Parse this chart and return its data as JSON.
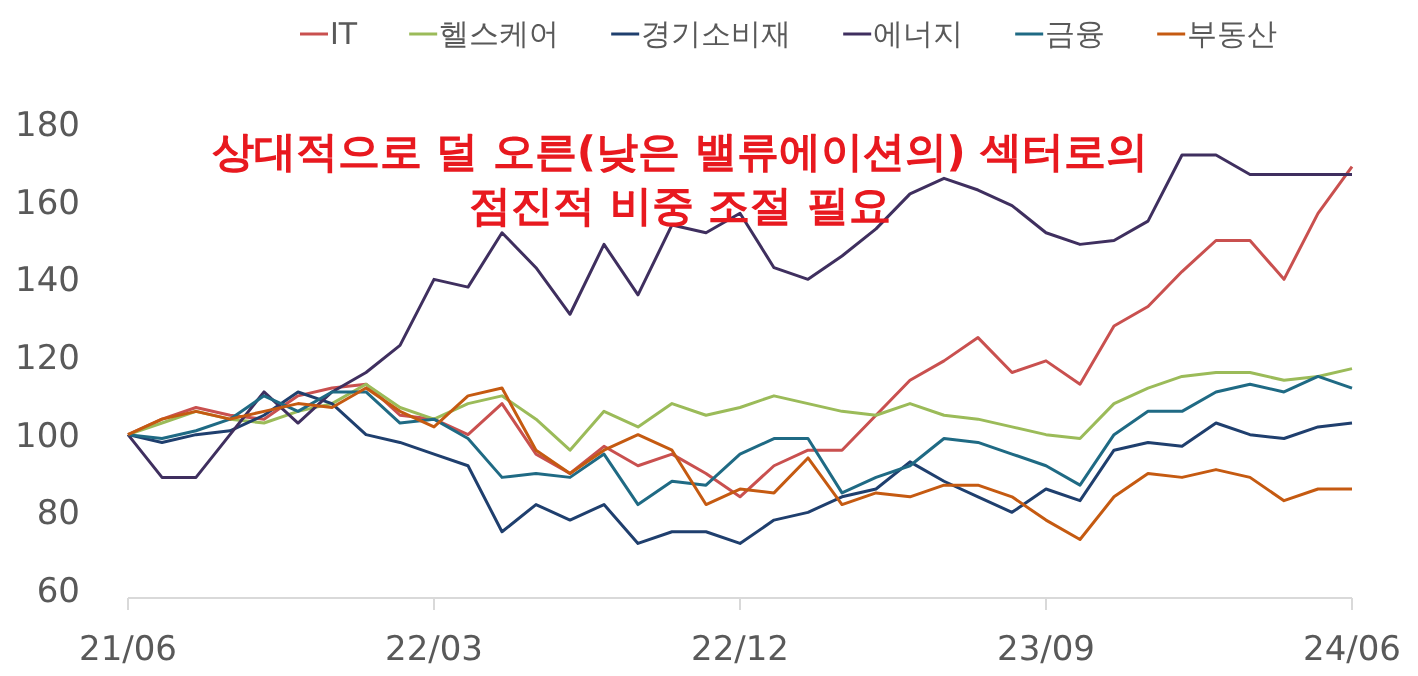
{
  "chart_data": {
    "type": "line",
    "annotations": [
      "상대적으로 덜 오른(낮은 밸류에이션의) 섹터로의",
      "점진적 비중 조절 필요"
    ],
    "categories": [
      "21/06",
      null,
      null,
      null,
      null,
      null,
      null,
      null,
      null,
      "22/03",
      null,
      null,
      null,
      null,
      null,
      null,
      null,
      null,
      "22/12",
      null,
      null,
      null,
      null,
      null,
      null,
      null,
      null,
      "23/09",
      null,
      null,
      null,
      null,
      null,
      null,
      null,
      null,
      "24/06"
    ],
    "series": [
      {
        "name": "IT",
        "color": "#c9504f",
        "values": [
          100,
          104,
          107,
          105,
          104,
          110,
          112,
          113,
          105,
          104,
          100,
          108,
          95,
          90,
          97,
          92,
          95,
          90,
          84,
          92,
          96,
          96,
          105,
          114,
          119,
          125,
          116,
          119,
          113,
          128,
          133,
          142,
          150,
          150,
          140,
          157,
          169
        ]
      },
      {
        "name": "헬스케어",
        "color": "#9bbb59",
        "values": [
          100,
          103,
          106,
          104,
          103,
          106,
          108,
          113,
          107,
          104,
          108,
          110,
          104,
          96,
          106,
          102,
          108,
          105,
          107,
          110,
          108,
          106,
          105,
          108,
          105,
          104,
          102,
          100,
          99,
          108,
          112,
          115,
          116,
          116,
          114,
          115,
          117
        ]
      },
      {
        "name": "경기소비재",
        "color": "#1f3f6e",
        "values": [
          100,
          98,
          100,
          101,
          105,
          111,
          108,
          100,
          98,
          95,
          92,
          75,
          82,
          78,
          82,
          72,
          75,
          75,
          72,
          78,
          80,
          84,
          86,
          93,
          88,
          84,
          80,
          86,
          83,
          96,
          98,
          97,
          103,
          100,
          99,
          102,
          103
        ]
      },
      {
        "name": "에너지",
        "color": "#3f2f5f",
        "values": [
          100,
          89,
          89,
          100,
          111,
          103,
          111,
          116,
          123,
          140,
          138,
          152,
          143,
          131,
          149,
          136,
          154,
          152,
          157,
          143,
          140,
          146,
          153,
          162,
          166,
          163,
          159,
          152,
          149,
          150,
          155,
          172,
          172,
          167,
          167,
          167,
          167
        ]
      },
      {
        "name": "금융",
        "color": "#1f6a84",
        "values": [
          100,
          99,
          101,
          104,
          110,
          106,
          111,
          111,
          103,
          104,
          99,
          89,
          90,
          89,
          95,
          82,
          88,
          87,
          95,
          99,
          99,
          85,
          89,
          92,
          99,
          98,
          95,
          92,
          87,
          100,
          106,
          106,
          111,
          113,
          111,
          115,
          112
        ]
      },
      {
        "name": "부동산",
        "color": "#c55a11",
        "values": [
          100,
          104,
          106,
          104,
          106,
          108,
          107,
          112,
          106,
          102,
          110,
          112,
          96,
          90,
          96,
          100,
          96,
          82,
          86,
          85,
          94,
          82,
          85,
          84,
          87,
          87,
          84,
          78,
          73,
          84,
          90,
          89,
          91,
          89,
          83,
          86,
          86
        ]
      }
    ],
    "ylim": [
      60,
      180
    ],
    "yticks": [
      60,
      80,
      100,
      120,
      140,
      160,
      180
    ],
    "legend": "top",
    "grid": false,
    "marker": "none",
    "line_style": "solid"
  }
}
